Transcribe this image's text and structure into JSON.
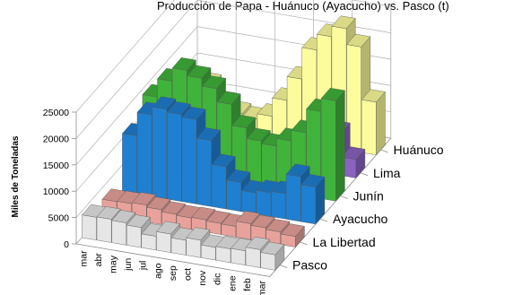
{
  "chart_data": {
    "type": "bar",
    "title": "Producción de Papa - Huánuco (Ayacucho) vs. Pasco (t)",
    "ylabel": "Miles de Toneladas",
    "xlabel": "",
    "ylim": [
      0,
      25000
    ],
    "y_ticks": [
      "0",
      "5000",
      "10000",
      "15000",
      "20000",
      "25000"
    ],
    "categories": [
      "mar",
      "abr",
      "may",
      "jun",
      "jul",
      "ago",
      "sep",
      "oct",
      "nov",
      "dic",
      "ene",
      "feb",
      "mar"
    ],
    "series": [
      {
        "name": "Pasco",
        "color": "#e6e6e6",
        "values": [
          4300,
          4400,
          4200,
          3800,
          2600,
          3500,
          2800,
          3300,
          2400,
          2600,
          2700,
          3400,
          2900
        ]
      },
      {
        "name": "La Libertad",
        "color": "#e8a29b",
        "values": [
          2900,
          3000,
          3200,
          2800,
          2400,
          2200,
          2300,
          2100,
          2000,
          3000,
          2700,
          2400,
          2000
        ]
      },
      {
        "name": "Ayacucho",
        "color": "#1f7fd0",
        "values": [
          11000,
          15500,
          17000,
          16500,
          16000,
          12500,
          8000,
          5500,
          4000,
          4500,
          4800,
          8500,
          7000
        ]
      },
      {
        "name": "Junín",
        "color": "#40b33a",
        "values": [
          14000,
          17500,
          20000,
          19000,
          17500,
          15000,
          11000,
          9000,
          8500,
          10000,
          12000,
          16500,
          19000
        ]
      },
      {
        "name": "Lima",
        "color": "#8a62bf",
        "values": [
          700,
          800,
          600,
          500,
          400,
          600,
          1000,
          1800,
          2500,
          3800,
          6500,
          8000,
          3500
        ]
      },
      {
        "name": "Huánuco",
        "color": "#fcfc9c",
        "values": [
          7000,
          8000,
          5000,
          3500,
          3000,
          4000,
          7500,
          12000,
          18000,
          21000,
          23000,
          20000,
          10000
        ]
      }
    ],
    "grid": true,
    "legend": "series labels at right of depth axis"
  }
}
